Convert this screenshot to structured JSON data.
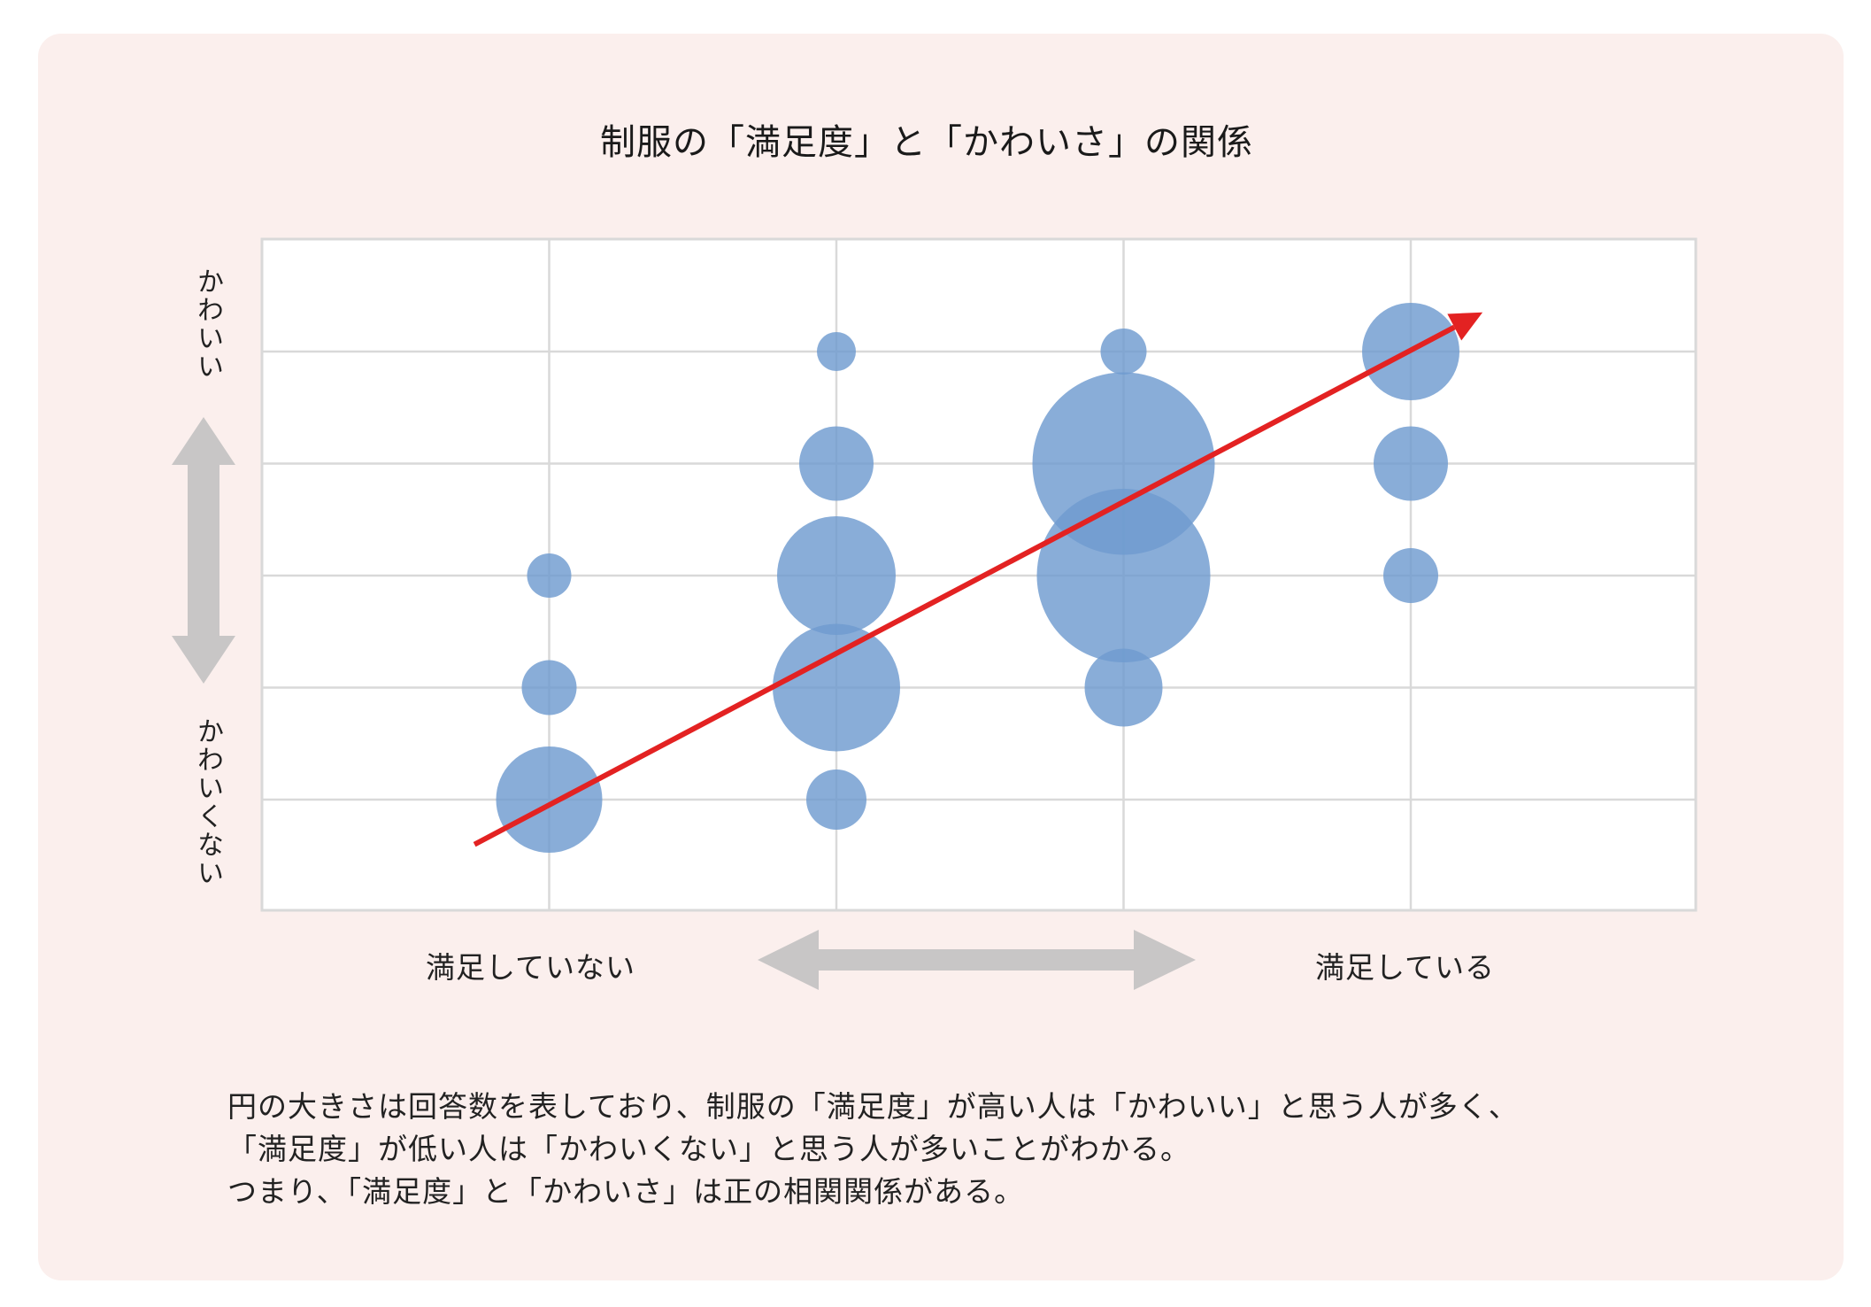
{
  "chart_data": {
    "type": "bubble",
    "title": "制服の「満足度」と「かわいさ」の関係",
    "x_categories": [
      "満足していない",
      "",
      "",
      "満足している"
    ],
    "y_labels": {
      "top": "かわいい",
      "bottom": "かわいくない"
    },
    "x_labels": {
      "left": "満足していない",
      "right": "満足している"
    },
    "y_levels": 5,
    "grid": true,
    "bubbles_note": "size = response count (relative)",
    "points": [
      {
        "x": 1,
        "y": 1,
        "size": 60
      },
      {
        "x": 1,
        "y": 2,
        "size": 31
      },
      {
        "x": 1,
        "y": 3,
        "size": 25
      },
      {
        "x": 2,
        "y": 1,
        "size": 34
      },
      {
        "x": 2,
        "y": 2,
        "size": 72
      },
      {
        "x": 2,
        "y": 3,
        "size": 67
      },
      {
        "x": 2,
        "y": 4,
        "size": 42
      },
      {
        "x": 2,
        "y": 5,
        "size": 22
      },
      {
        "x": 3,
        "y": 2,
        "size": 44
      },
      {
        "x": 3,
        "y": 3,
        "size": 98
      },
      {
        "x": 3,
        "y": 4,
        "size": 103
      },
      {
        "x": 3,
        "y": 5,
        "size": 26
      },
      {
        "x": 4,
        "y": 3,
        "size": 31
      },
      {
        "x": 4,
        "y": 4,
        "size": 42
      },
      {
        "x": 4,
        "y": 5,
        "size": 55
      }
    ],
    "trend_arrow": {
      "color": "#e32222",
      "from": [
        0.74,
        0.6
      ],
      "to": [
        4.25,
        5.35
      ]
    },
    "bubble_color": "#6f9bcf",
    "arrow_color": "#c8c6c6"
  },
  "caption": [
    "円の大きさは回答数を表しており、制服の「満足度」が高い人は「かわいい」と思う人が多く、",
    "「満足度」が低い人は「かわいくない」と思う人が多いことがわかる。",
    "つまり、「満足度」と「かわいさ」は正の相関関係がある。"
  ]
}
